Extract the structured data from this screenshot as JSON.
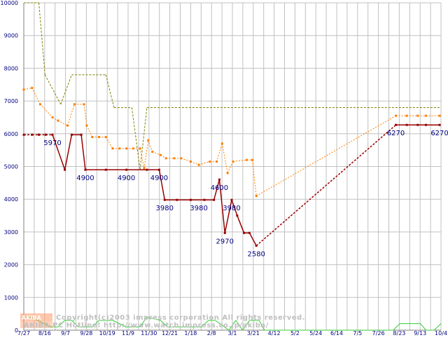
{
  "chart_data": {
    "type": "line",
    "ylim": [
      0,
      10000
    ],
    "y_ticks": [
      0,
      1000,
      2000,
      3000,
      4000,
      5000,
      6000,
      7000,
      8000,
      9000,
      10000
    ],
    "x_tick_labels": [
      "7/27",
      "8/16",
      "9/7",
      "9/28",
      "10/19",
      "11/9",
      "11/30",
      "12/21",
      "1/18",
      "2/8",
      "3/1",
      "3/21",
      "4/12",
      "5/2",
      "5/24",
      "6/14",
      "7/5",
      "7/26",
      "8/23",
      "9/13",
      "10/4"
    ],
    "grid": true,
    "legend": "none",
    "colors": {
      "olive": "#808000",
      "orange": "#ff8000",
      "darkred": "#990000",
      "green": "#33cc33",
      "label": "#000080",
      "grid": "#c0c0c0"
    },
    "series": [
      {
        "color": "olive",
        "style": "dashed",
        "points": [
          [
            0,
            10000
          ],
          [
            1.1,
            10000
          ],
          [
            1.55,
            7800
          ],
          [
            2.7,
            6900
          ],
          [
            3.5,
            7800
          ],
          [
            6.0,
            7800
          ],
          [
            6.6,
            6800
          ],
          [
            7.9,
            6800
          ],
          [
            8.5,
            4900
          ],
          [
            9.0,
            6800
          ],
          [
            30.5,
            6800
          ]
        ]
      },
      {
        "color": "orange",
        "style": "dotted",
        "points": [
          [
            0,
            7350
          ],
          [
            0.6,
            7400
          ],
          [
            1.2,
            6900
          ],
          [
            2.1,
            6500
          ],
          [
            2.5,
            6400
          ],
          [
            3.2,
            6250
          ],
          [
            3.7,
            6900
          ],
          [
            4.4,
            6900
          ],
          [
            4.6,
            6250
          ],
          [
            5.0,
            5900
          ],
          [
            5.5,
            5900
          ],
          [
            6.0,
            5900
          ],
          [
            6.5,
            5550
          ],
          [
            7.0,
            5550
          ],
          [
            7.5,
            5550
          ],
          [
            8.0,
            5550
          ],
          [
            8.5,
            5550
          ],
          [
            8.8,
            4950
          ],
          [
            9.1,
            5800
          ],
          [
            9.4,
            5450
          ],
          [
            10.0,
            5350
          ],
          [
            10.4,
            5250
          ],
          [
            11.0,
            5250
          ],
          [
            11.5,
            5250
          ],
          [
            12.2,
            5150
          ],
          [
            12.8,
            5050
          ],
          [
            13.6,
            5150
          ],
          [
            14.1,
            5150
          ],
          [
            14.5,
            5700
          ],
          [
            14.9,
            4800
          ],
          [
            15.3,
            5150
          ],
          [
            16.3,
            5200
          ],
          [
            16.7,
            5200
          ],
          [
            17.0,
            4100
          ],
          [
            27.2,
            6550
          ],
          [
            28.0,
            6550
          ],
          [
            28.8,
            6550
          ],
          [
            29.4,
            6550
          ],
          [
            30.4,
            6550
          ]
        ]
      },
      {
        "color": "darkred",
        "style": "solid",
        "points": [
          [
            0,
            5970
          ],
          [
            0.6,
            5970
          ],
          [
            1.1,
            5970
          ],
          [
            1.6,
            5970
          ],
          [
            2.1,
            5970
          ],
          [
            3.0,
            4900
          ],
          [
            3.5,
            5970
          ],
          [
            4.2,
            5970
          ],
          [
            4.5,
            4900
          ],
          [
            6.0,
            4900
          ],
          [
            7.5,
            4900
          ],
          [
            9.0,
            4900
          ],
          [
            9.9,
            4900
          ],
          [
            10.3,
            3980
          ],
          [
            11.2,
            3980
          ],
          [
            12.2,
            3980
          ],
          [
            13.2,
            3980
          ],
          [
            13.9,
            3980
          ],
          [
            14.3,
            4600
          ],
          [
            14.7,
            2970
          ],
          [
            15.2,
            3980
          ],
          [
            15.6,
            3500
          ],
          [
            16.1,
            2970
          ],
          [
            16.5,
            2970
          ],
          [
            17.0,
            2580
          ],
          [
            27.2,
            6270
          ],
          [
            28.0,
            6270
          ],
          [
            28.8,
            6270
          ],
          [
            29.4,
            6270
          ],
          [
            30.4,
            6270
          ]
        ],
        "dashed_segments": [
          [
            0,
            4
          ],
          [
            24,
            25
          ]
        ]
      },
      {
        "color": "green",
        "style": "solid",
        "points": [
          [
            0,
            400
          ],
          [
            0.5,
            400
          ],
          [
            1.0,
            300
          ],
          [
            2.0,
            100
          ],
          [
            2.5,
            100
          ],
          [
            3.0,
            300
          ],
          [
            3.5,
            300
          ],
          [
            4.0,
            100
          ],
          [
            5.0,
            100
          ],
          [
            5.5,
            300
          ],
          [
            6.5,
            300
          ],
          [
            7.5,
            100
          ],
          [
            8.5,
            100
          ],
          [
            9.0,
            400
          ],
          [
            10.0,
            300
          ],
          [
            10.5,
            100
          ],
          [
            12.0,
            100
          ],
          [
            13.0,
            100
          ],
          [
            13.5,
            300
          ],
          [
            14.0,
            300
          ],
          [
            15.0,
            0
          ],
          [
            15.5,
            300
          ],
          [
            16.0,
            0
          ],
          [
            16.5,
            300
          ],
          [
            17.2,
            300
          ],
          [
            17.6,
            0
          ],
          [
            27.0,
            0
          ],
          [
            27.5,
            200
          ],
          [
            29.0,
            200
          ],
          [
            29.4,
            0
          ],
          [
            30.0,
            0
          ],
          [
            30.5,
            200
          ]
        ]
      }
    ],
    "data_labels": [
      {
        "text": "5970",
        "x": 2.1,
        "y": 5970
      },
      {
        "text": "4900",
        "x": 4.5,
        "y": 4900
      },
      {
        "text": "4900",
        "x": 7.5,
        "y": 4900
      },
      {
        "text": "4900",
        "x": 9.9,
        "y": 4900
      },
      {
        "text": "3980",
        "x": 10.3,
        "y": 3980
      },
      {
        "text": "3980",
        "x": 12.8,
        "y": 3980
      },
      {
        "text": "4600",
        "x": 14.3,
        "y": 4600
      },
      {
        "text": "3980",
        "x": 15.2,
        "y": 3980
      },
      {
        "text": "2970",
        "x": 14.7,
        "y": 2970
      },
      {
        "text": "2580",
        "x": 17.0,
        "y": 2580
      },
      {
        "text": "6270",
        "x": 27.2,
        "y": 6270
      },
      {
        "text": "6270",
        "x": 30.4,
        "y": 6270
      }
    ]
  },
  "watermark": {
    "logo_text": "AKIBA",
    "logo_sub": "PC Hotline!",
    "line1": "Copyright(c)2003 impress corporation All rights reserved.",
    "line2": "AKIBA PC Hotline! http://www.watch.impress.co.jp/akiba/"
  }
}
